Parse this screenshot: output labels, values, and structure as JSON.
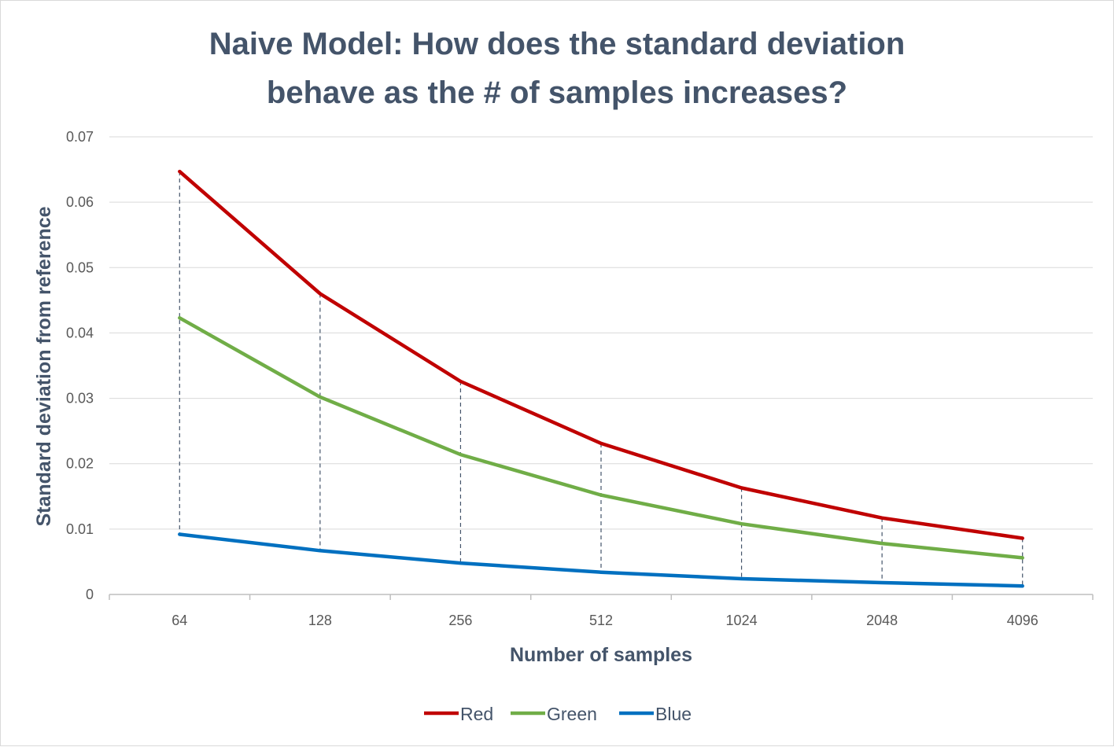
{
  "chart_data": {
    "type": "line",
    "title_lines": [
      "Naive Model: How does the standard deviation",
      "behave as the # of samples increases?"
    ],
    "xlabel": "Number of samples",
    "ylabel": "Standard deviation from reference",
    "categories": [
      "64",
      "128",
      "256",
      "512",
      "1024",
      "2048",
      "4096"
    ],
    "ylim": [
      0,
      0.07
    ],
    "yticks": [
      0,
      0.01,
      0.02,
      0.03,
      0.04,
      0.05,
      0.06,
      0.07
    ],
    "ytick_labels": [
      "0",
      "0.01",
      "0.02",
      "0.03",
      "0.04",
      "0.05",
      "0.06",
      "0.07"
    ],
    "grid": true,
    "drop_lines": true,
    "legend_position": "bottom",
    "series": [
      {
        "name": "Red",
        "color": "#c00000",
        "values": [
          0.0647,
          0.046,
          0.0326,
          0.0231,
          0.0163,
          0.0117,
          0.0086
        ]
      },
      {
        "name": "Green",
        "color": "#70ad47",
        "values": [
          0.0423,
          0.0302,
          0.0214,
          0.0152,
          0.0108,
          0.0078,
          0.0056
        ]
      },
      {
        "name": "Blue",
        "color": "#0070c0",
        "values": [
          0.0092,
          0.0067,
          0.0048,
          0.0034,
          0.0024,
          0.0018,
          0.0013
        ]
      }
    ]
  }
}
